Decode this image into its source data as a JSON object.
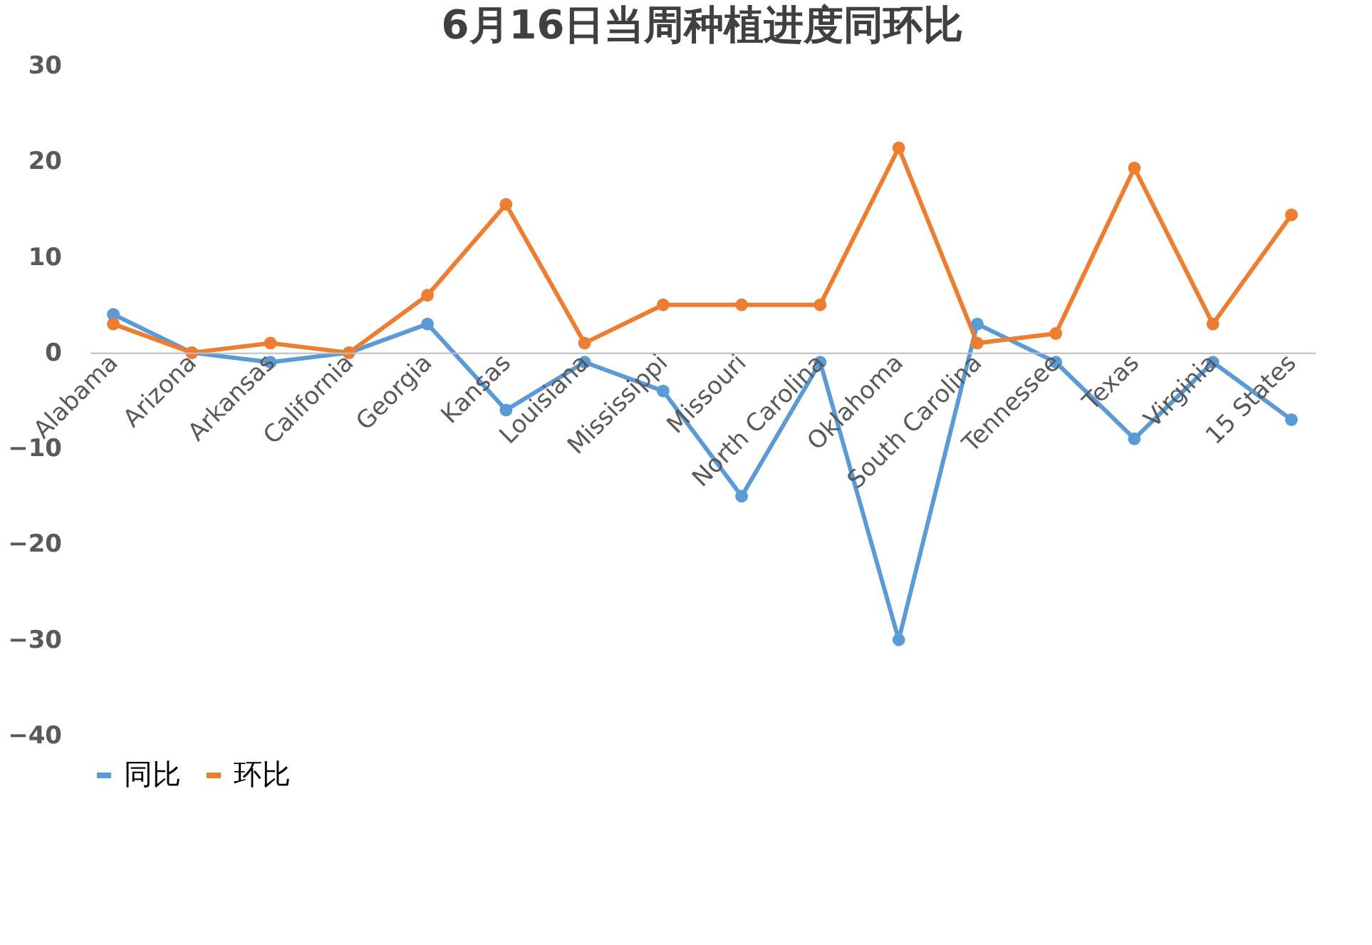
{
  "chart_data": {
    "type": "line",
    "title": "6月16日当周种植进度同环比",
    "categories": [
      "Alabama",
      "Arizona",
      "Arkansas",
      "California",
      "Georgia",
      "Kansas",
      "Louisiana",
      "Mississippi",
      "Missouri",
      "North Carolina",
      "Oklahoma",
      "South Carolina",
      "Tennessee",
      "Texas",
      "Virginia",
      "15 States"
    ],
    "series": [
      {
        "name": "同比",
        "color": "#5b9bd5",
        "values": [
          4,
          0,
          -1,
          0,
          3,
          -6,
          -1,
          -4,
          -15,
          -1,
          -30,
          3,
          -1,
          -9,
          -1,
          -7
        ]
      },
      {
        "name": "环比",
        "color": "#ed7d31",
        "values": [
          3,
          0,
          1,
          0,
          6,
          15.5,
          1,
          5,
          5,
          5,
          21.4,
          1,
          2,
          19.3,
          3,
          14.4
        ]
      }
    ],
    "ylim": [
      -40,
      30
    ],
    "yticks": [
      -40,
      -30,
      -20,
      -10,
      0,
      10,
      20,
      30
    ],
    "grid": false,
    "legend": "bottom",
    "marker": "circle",
    "line_style": "solid"
  }
}
